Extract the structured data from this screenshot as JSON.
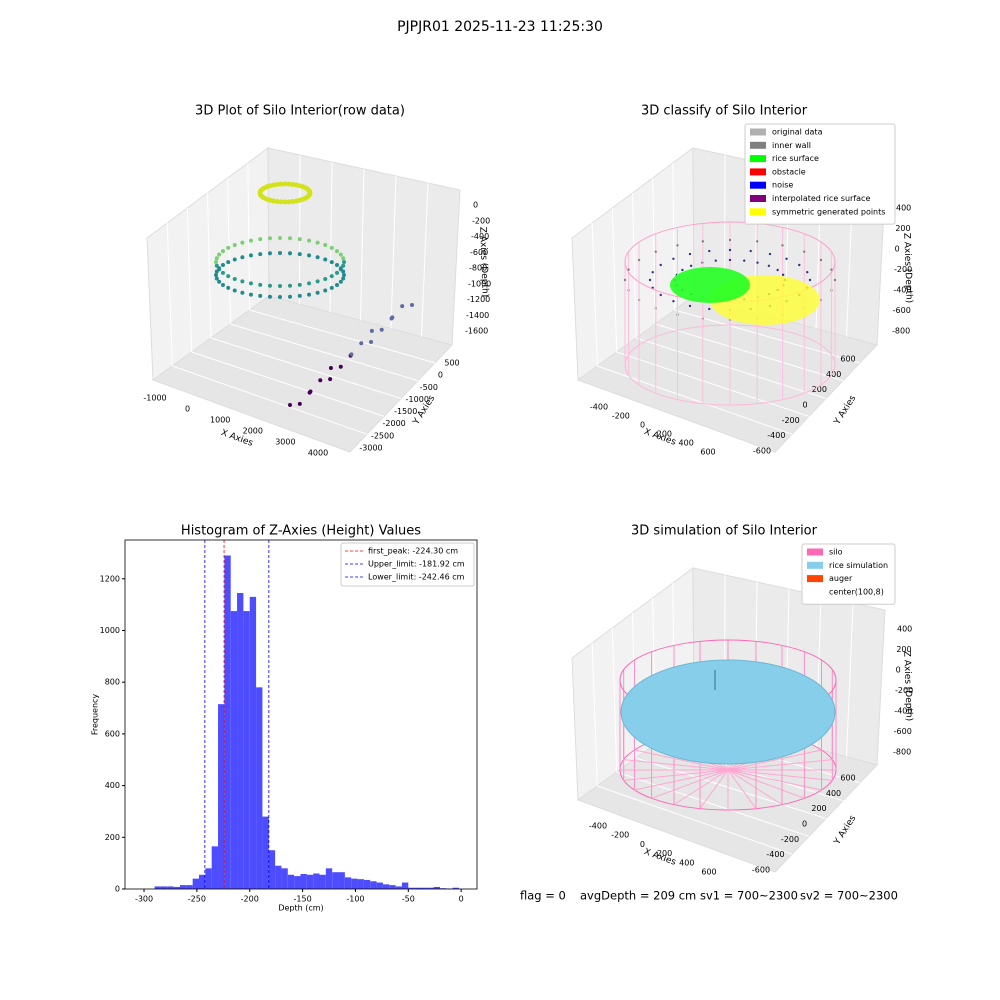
{
  "title": "PJPJR01 2025-11-23 11:25:30",
  "chart_data": [
    {
      "type": "scatter3d",
      "title": "3D Plot of Silo Interior(row data)",
      "xlabel": "X Axies",
      "ylabel": "Y Axies",
      "zlabel": "Z Axies (Depth)",
      "xticks": [
        -1000,
        0,
        1000,
        2000,
        3000,
        4000
      ],
      "yticks": [
        500,
        0,
        -500,
        -1000,
        -1500,
        -2000,
        -2500,
        -3000
      ],
      "zticks": [
        0,
        -200,
        -400,
        -600,
        -800,
        -1000,
        -1200,
        -1400,
        -1600
      ]
    },
    {
      "type": "classify3d",
      "title": "3D classify of Silo Interior",
      "xlabel": "X Axies",
      "ylabel": "Y Axies",
      "zlabel": "Z Axies (Depth)",
      "xticks": [
        -400,
        -200,
        0,
        200,
        400,
        600
      ],
      "yticks": [
        -600,
        -400,
        -200,
        0,
        200,
        400,
        600
      ],
      "zticks": [
        400,
        200,
        0,
        -200,
        -400,
        -600,
        -800
      ],
      "legend": [
        {
          "name": "original data",
          "color": "#b0b0b0"
        },
        {
          "name": "inner wall",
          "color": "#808080"
        },
        {
          "name": "rice surface",
          "color": "#00ff00"
        },
        {
          "name": "obstacle",
          "color": "#ff0000"
        },
        {
          "name": "noise",
          "color": "#0000ff"
        },
        {
          "name": "interpolated rice surface",
          "color": "#800080"
        },
        {
          "name": "symmetric generated points",
          "color": "#ffff00"
        }
      ]
    },
    {
      "type": "histogram",
      "title": "Histogram of Z-Axies (Height) Values",
      "xlabel": "Depth (cm)",
      "ylabel": "Frequency",
      "color": "#4d4dff",
      "bins": [
        -290,
        -284,
        -278,
        -272,
        -266,
        -260,
        -254,
        -248,
        -242,
        -236,
        -230,
        -224,
        -218,
        -212,
        -206,
        -200,
        -194,
        -188,
        -182,
        -176,
        -170,
        -164,
        -158,
        -152,
        -146,
        -140,
        -134,
        -128,
        -122,
        -116,
        -110,
        -104,
        -98,
        -92,
        -86,
        -80,
        -74,
        -68,
        -62,
        -56,
        -50,
        -44,
        -38,
        -32,
        -26,
        -20,
        -14,
        -8,
        -2
      ],
      "values": [
        10,
        10,
        10,
        8,
        15,
        15,
        40,
        55,
        80,
        165,
        715,
        1290,
        1075,
        1145,
        1075,
        1130,
        780,
        280,
        150,
        90,
        80,
        55,
        50,
        58,
        55,
        60,
        55,
        80,
        65,
        65,
        45,
        40,
        38,
        35,
        30,
        25,
        18,
        15,
        10,
        25,
        5,
        5,
        5,
        5,
        8,
        3,
        2,
        5
      ],
      "xlim": [
        -318,
        15
      ],
      "ylim": [
        0,
        1350
      ],
      "xticks": [
        -300,
        -250,
        -200,
        -150,
        -100,
        -50,
        0
      ],
      "yticks": [
        0,
        200,
        400,
        600,
        800,
        1000,
        1200
      ],
      "lines": [
        {
          "name": "first_peak: -224.30 cm",
          "value": -224.3,
          "color": "#ff0000"
        },
        {
          "name": "Upper_limit: -181.92 cm",
          "value": -181.92,
          "color": "#0000ff"
        },
        {
          "name": "Lower_limit: -242.46 cm",
          "value": -242.46,
          "color": "#0000ff"
        }
      ],
      "legend_loc": "upper right"
    },
    {
      "type": "surface3d",
      "title": "3D simulation of Silo Interior",
      "xlabel": "X Axies",
      "ylabel": "Y Axies",
      "zlabel": "Z Axies (Depth)",
      "xticks": [
        -400,
        -200,
        0,
        200,
        400,
        600
      ],
      "yticks": [
        600,
        400,
        200,
        0,
        -200,
        -400,
        -600
      ],
      "zticks": [
        400,
        200,
        0,
        -200,
        -400,
        -600,
        -800
      ],
      "legend": [
        {
          "name": "silo",
          "color": "#ff69b4"
        },
        {
          "name": "rice simulation",
          "color": "#87ceeb"
        },
        {
          "name": "auger",
          "color": "#ff4500"
        },
        {
          "name": "center(100,8)",
          "color": "#ffffff"
        }
      ]
    }
  ],
  "footer": [
    "flag = 0",
    "avgDepth = 209 cm",
    "sv1 = 700~2300",
    "sv2 = 700~2300"
  ]
}
